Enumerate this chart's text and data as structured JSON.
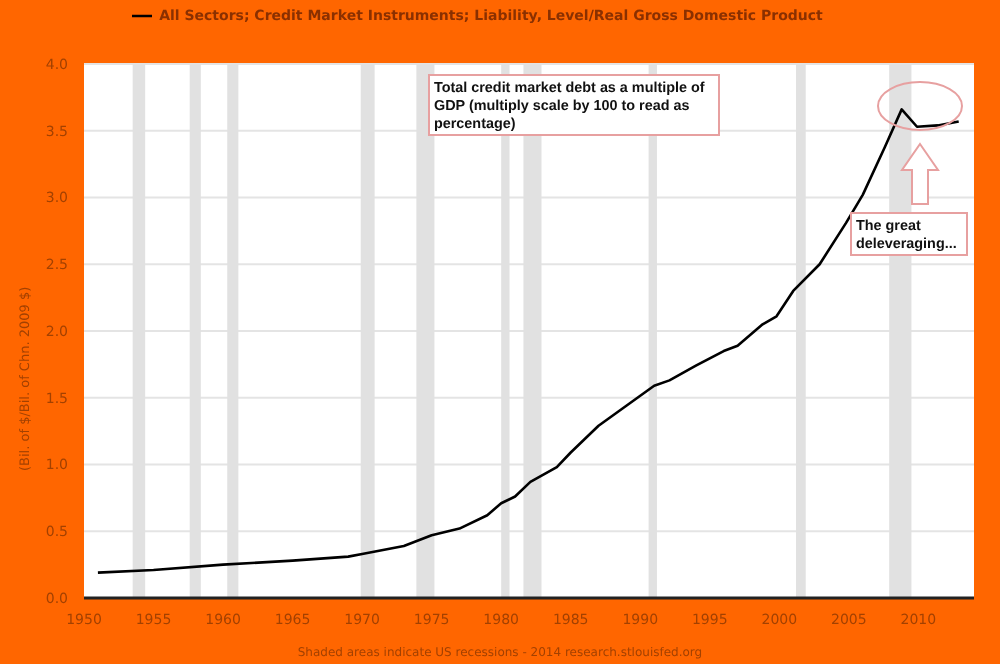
{
  "chart_data": {
    "type": "line",
    "ylabel": "(Bil. of $/Bil. of Chn. 2009 $)",
    "annotations": [
      "Total credit market debt as a multiple of GDP (multiply scale by 100 to read as percentage)",
      "The great deleveraging...",
      "Shaded areas indicate US recessions - 2014 research.stlouisfed.org"
    ],
    "series": [
      {
        "name": "All Sectors; Credit Market Instruments; Liability, Level/Real Gross Domestic Product",
        "color": "#000000",
        "x": [
          1951,
          1955,
          1960,
          1965,
          1969,
          1970,
          1973,
          1975,
          1977,
          1979,
          1980,
          1981,
          1982.1,
          1984,
          1985,
          1987,
          1989,
          1991,
          1992.1,
          1994,
          1996,
          1997,
          1998.8,
          1999.8,
          2001,
          2002.9,
          2004.8,
          2006,
          2007.6,
          2008.8,
          2009.9,
          2011.4,
          2012.9
        ],
        "values": [
          0.19,
          0.21,
          0.25,
          0.28,
          0.31,
          0.33,
          0.39,
          0.47,
          0.52,
          0.62,
          0.71,
          0.76,
          0.87,
          0.98,
          1.09,
          1.29,
          1.44,
          1.59,
          1.63,
          1.74,
          1.85,
          1.89,
          2.05,
          2.11,
          2.3,
          2.5,
          2.81,
          3.02,
          3.38,
          3.66,
          3.53,
          3.54,
          3.57
        ]
      }
    ],
    "xlim": [
      1950,
      2014
    ],
    "xticks": [
      1950,
      1955,
      1960,
      1965,
      1970,
      1975,
      1980,
      1985,
      1990,
      1995,
      2000,
      2005,
      2010
    ],
    "ylim": [
      0,
      4
    ],
    "yticks": [
      {
        "value": 0,
        "label": "0.0"
      },
      {
        "value": 0.5,
        "label": "0.5"
      },
      {
        "value": 1,
        "label": "1.0"
      },
      {
        "value": 1.5,
        "label": "1.5"
      },
      {
        "value": 2,
        "label": "2.0"
      },
      {
        "value": 2.5,
        "label": "2.5"
      },
      {
        "value": 3,
        "label": "3.0"
      },
      {
        "value": 3.5,
        "label": "3.5"
      },
      {
        "value": 4,
        "label": "4.0"
      }
    ],
    "bands": [
      {
        "axis": "x",
        "from": 1953.5,
        "to": 1954.4,
        "color": "#e1e1e1"
      },
      {
        "axis": "x",
        "from": 1957.6,
        "to": 1958.4,
        "color": "#e1e1e1"
      },
      {
        "axis": "x",
        "from": 1960.3,
        "to": 1961.1,
        "color": "#e1e1e1"
      },
      {
        "axis": "x",
        "from": 1969.9,
        "to": 1970.9,
        "color": "#e1e1e1"
      },
      {
        "axis": "x",
        "from": 1973.9,
        "to": 1975.2,
        "color": "#e1e1e1"
      },
      {
        "axis": "x",
        "from": 1980,
        "to": 1980.6,
        "color": "#e1e1e1"
      },
      {
        "axis": "x",
        "from": 1981.6,
        "to": 1982.9,
        "color": "#e1e1e1"
      },
      {
        "axis": "x",
        "from": 1990.6,
        "to": 1991.2,
        "color": "#e1e1e1"
      },
      {
        "axis": "x",
        "from": 2001.2,
        "to": 2001.9,
        "color": "#e1e1e1"
      },
      {
        "axis": "x",
        "from": 2007.9,
        "to": 2009.5,
        "color": "#e1e1e1"
      }
    ],
    "grid": "y",
    "legend": "top",
    "marker": "none",
    "line_style": "solid"
  }
}
